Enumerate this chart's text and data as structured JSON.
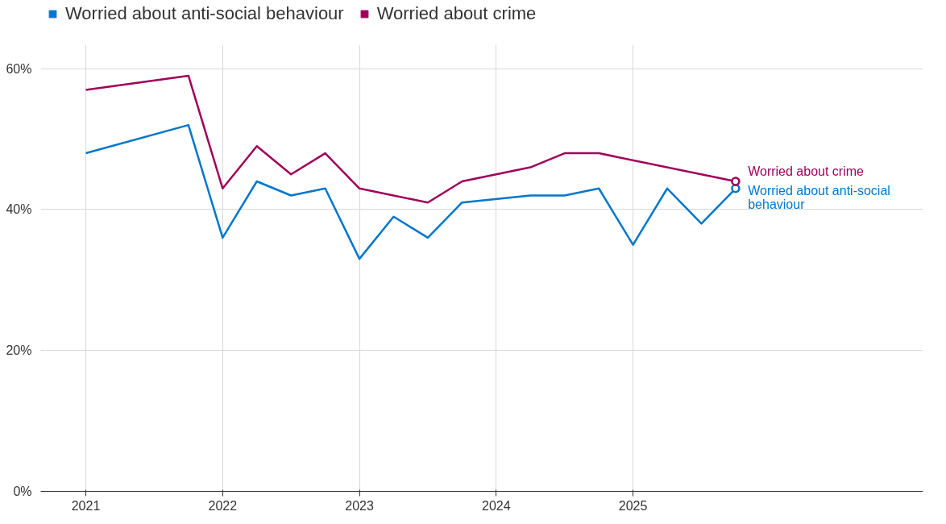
{
  "chart_data": {
    "type": "line",
    "x": [
      2021,
      2021.75,
      2022,
      2022.25,
      2022.5,
      2022.75,
      2023,
      2023.25,
      2023.5,
      2023.75,
      2024.25,
      2024.5,
      2024.75,
      2025,
      2025.25,
      2025.5,
      2025.75
    ],
    "series": [
      {
        "name": "Worried about anti-social behaviour",
        "color": "#0077cc",
        "values": [
          48,
          52,
          36,
          44,
          42,
          43,
          33,
          39,
          36,
          41,
          42,
          42,
          43,
          35,
          43,
          38,
          43
        ]
      },
      {
        "name": "Worried about crime",
        "color": "#a0005a",
        "values": [
          57,
          59,
          43,
          49,
          45,
          48,
          43,
          null,
          41,
          44,
          46,
          48,
          48,
          null,
          null,
          null,
          44
        ]
      }
    ],
    "xlim": [
      2020.67,
      2027.12
    ],
    "xticks": [
      2021,
      2022,
      2023,
      2024,
      2025
    ],
    "ylim": [
      0,
      63.4
    ],
    "yticks": [
      {
        "value": 0,
        "label": "0%"
      },
      {
        "value": 20,
        "label": "20%"
      },
      {
        "value": 40,
        "label": "40%"
      },
      {
        "value": 60,
        "label": "60%"
      }
    ],
    "grid": true,
    "legend": "top left",
    "line_style": "solid"
  }
}
